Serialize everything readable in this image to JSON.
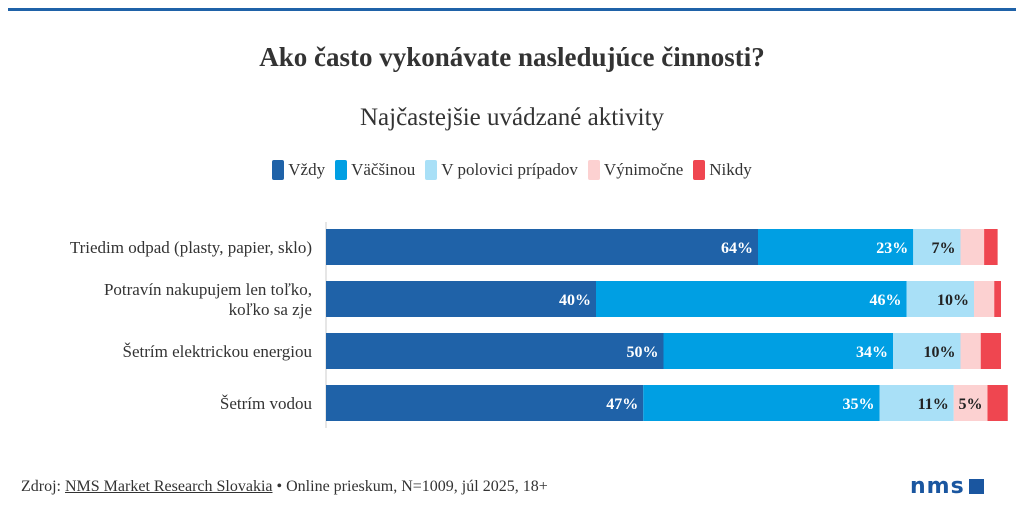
{
  "chart_data": {
    "type": "bar",
    "orientation": "horizontal",
    "stacked": true,
    "title": "Ako často vykonávate nasledujúce činnosti?",
    "subtitle": "Najčastejšie uvádzané aktivity",
    "legend_position": "top-center",
    "categories": [
      [
        "Triedim odpad (plasty, papier, sklo)"
      ],
      [
        "Potravín nakupujem len toľko,",
        "koľko sa zje"
      ],
      [
        "Šetrím elektrickou energiou"
      ],
      [
        "Šetrím vodou"
      ]
    ],
    "series": [
      {
        "name": "Vždy",
        "color": "#1f62a8",
        "label_color": "#ffffff",
        "values": [
          64,
          40,
          50,
          47
        ],
        "labels": [
          "64%",
          "40%",
          "50%",
          "47%"
        ]
      },
      {
        "name": "Väčšinou",
        "color": "#009fe3",
        "label_color": "#ffffff",
        "values": [
          23,
          46,
          34,
          35
        ],
        "labels": [
          "23%",
          "46%",
          "34%",
          "35%"
        ]
      },
      {
        "name": "V polovici prípadov",
        "color": "#a9e0f7",
        "label_color": "#222222",
        "values": [
          7,
          10,
          10,
          11
        ],
        "labels": [
          "7%",
          "10%",
          "10%",
          "11%"
        ]
      },
      {
        "name": "Výnimočne",
        "color": "#fcd1d1",
        "label_color": "#222222",
        "values": [
          3.5,
          3,
          3,
          5
        ],
        "labels": [
          "",
          "",
          "",
          "5%"
        ]
      },
      {
        "name": "Nikdy",
        "color": "#ef4650",
        "label_color": "#222222",
        "values": [
          2,
          1,
          3,
          3
        ],
        "labels": [
          "",
          "",
          "",
          ""
        ]
      }
    ],
    "xlim": [
      0,
      100
    ],
    "grid": false
  },
  "footer": {
    "source_prefix": "Zdroj:",
    "source_link": "NMS Market Research Slovakia",
    "separator": "•",
    "details": "Online prieskum, N=1009, júl 2025, 18+"
  },
  "logo": {
    "text": "nms"
  }
}
